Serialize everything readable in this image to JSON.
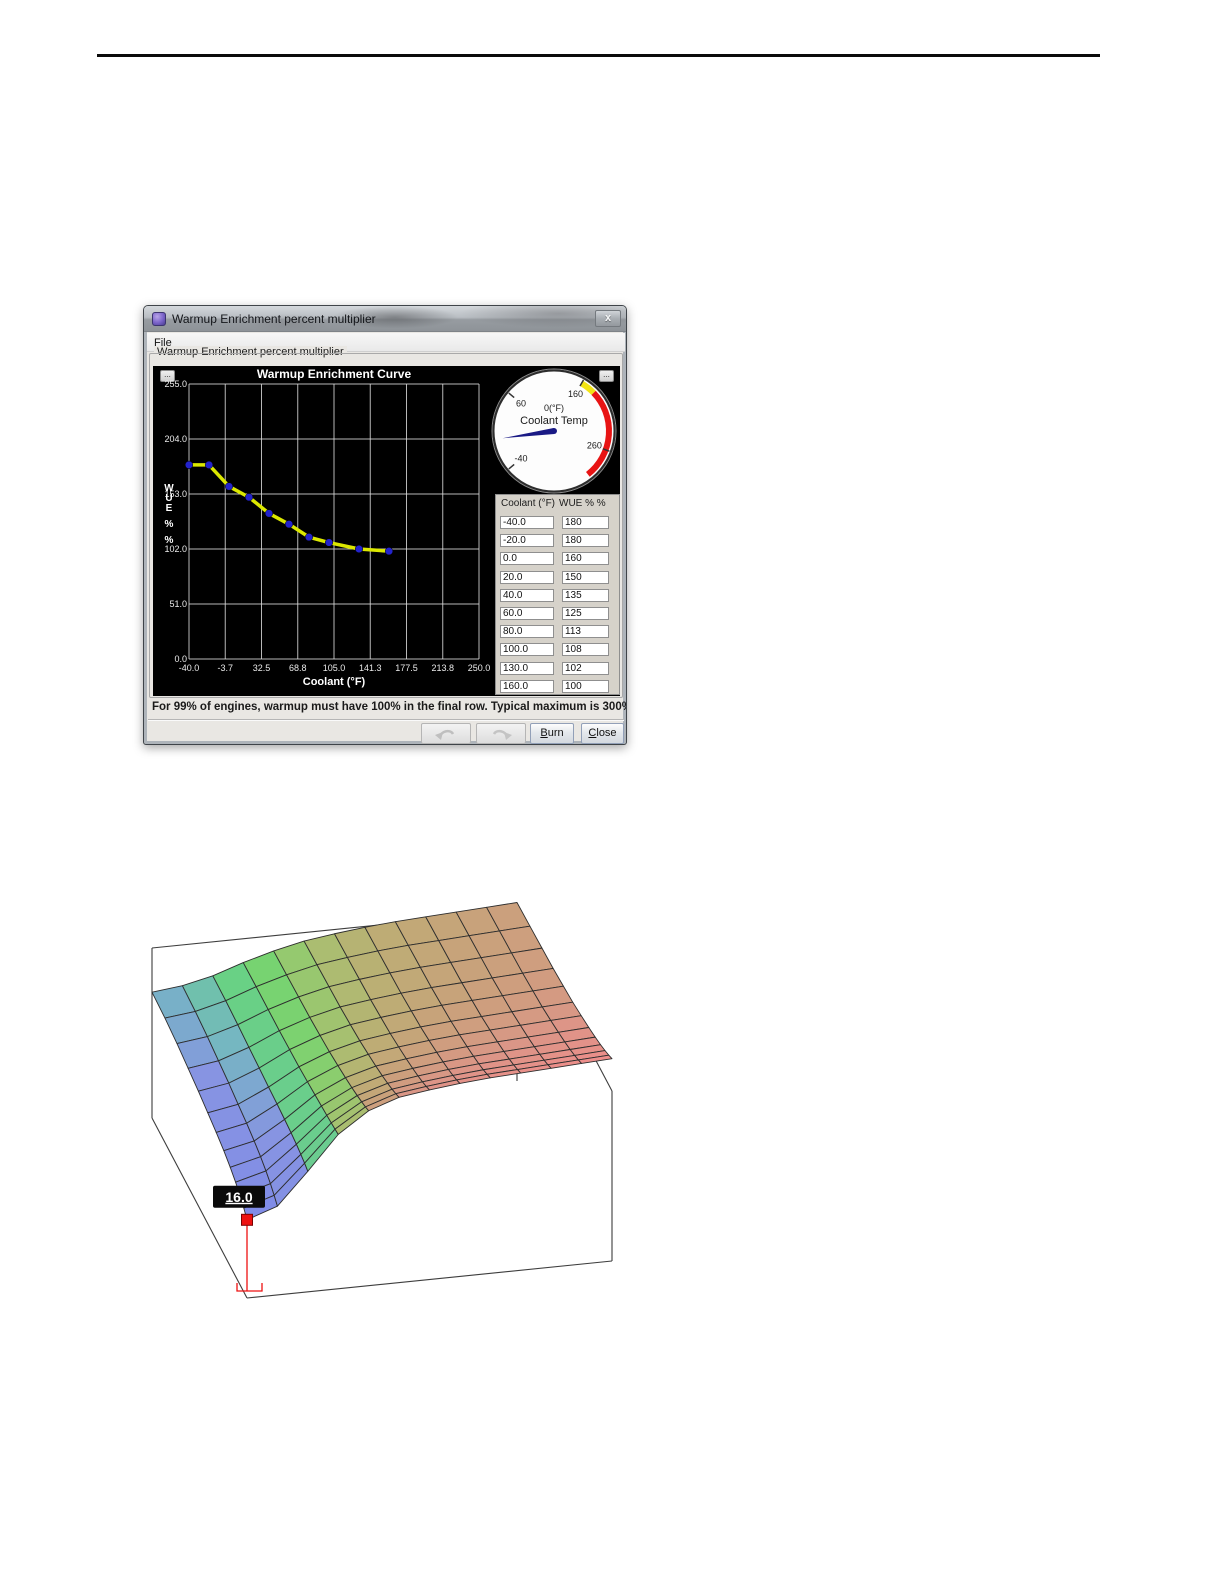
{
  "dialog": {
    "title": "Warmup Enrichment percent multiplier",
    "close_label": "x",
    "menu_items": {
      "file": "File"
    },
    "group_title": "Warmup Enrichment percent multiplier",
    "dots_button": "...",
    "status": "For 99% of engines, warmup must have 100% in the final row. Typical maximum is 300% (cold).",
    "buttons": {
      "burn": "Burn",
      "close": "Close"
    },
    "gauge": {
      "title": "Coolant Temp",
      "value_label": "0(°F)",
      "value": 0,
      "min": -40,
      "max": 300,
      "tick_labels": [
        {
          "v": -40,
          "t": "-40"
        },
        {
          "v": 60,
          "t": "60"
        },
        {
          "v": 160,
          "t": "160"
        },
        {
          "v": 260,
          "t": "260"
        }
      ],
      "red_arc": [
        180,
        300
      ],
      "yellow_arc": [
        160,
        180
      ],
      "red_color": "#e81414",
      "yellow_color": "#f2e413",
      "needle_color": "#1a1a85"
    },
    "table": {
      "headers": [
        "Coolant (°F)",
        "WUE % %"
      ],
      "rows": [
        [
          "-40.0",
          "180"
        ],
        [
          "-20.0",
          "180"
        ],
        [
          "0.0",
          "160"
        ],
        [
          "20.0",
          "150"
        ],
        [
          "40.0",
          "135"
        ],
        [
          "60.0",
          "125"
        ],
        [
          "80.0",
          "113"
        ],
        [
          "100.0",
          "108"
        ],
        [
          "130.0",
          "102"
        ],
        [
          "160.0",
          "100"
        ]
      ]
    }
  },
  "chart_data": [
    {
      "type": "line",
      "title": "Warmup Enrichment Curve",
      "xlabel": "Coolant (°F)",
      "ylabel": "WUE % %",
      "ylabel_stack": [
        "W",
        "U",
        "E",
        "%",
        "%"
      ],
      "x": [
        -40,
        -20,
        0,
        20,
        40,
        60,
        80,
        100,
        130,
        160
      ],
      "y": [
        180,
        180,
        160,
        150,
        135,
        125,
        113,
        108,
        102,
        100
      ],
      "xlim": [
        -40,
        250
      ],
      "ylim": [
        0,
        255
      ],
      "xticks": [
        -40,
        -3.75,
        32.5,
        68.75,
        105,
        141.25,
        177.5,
        213.75,
        250
      ],
      "xtick_labels": [
        "-40.0",
        "-3.7",
        "32.5",
        "68.8",
        "105.0",
        "141.3",
        "177.5",
        "213.8",
        "250.0"
      ],
      "yticks": [
        0,
        51,
        102,
        153,
        204,
        255
      ],
      "ytick_labels": [
        "0.0",
        "51.0",
        "102.0",
        "153.0",
        "204.0",
        "255.0"
      ],
      "grid": true,
      "bg_color": "#000000",
      "grid_color": "#d9d9d9",
      "line_color": "#dce800",
      "marker_color": "#2323cc"
    },
    {
      "type": "heatmap",
      "render_style": "3d-surface-mesh",
      "title": "",
      "marker": {
        "label": "16.0",
        "row": 12,
        "col": 0,
        "value": 16.0
      },
      "marker_color": "#ee1111",
      "z_grid": [
        [
          44.0,
          46.0,
          50.0,
          56.0,
          61.0,
          65.0,
          67.5,
          69.5,
          71.0,
          72.0,
          73.0,
          74.0,
          75.0
        ],
        [
          43.2,
          45.3,
          49.8,
          56.2,
          61.4,
          65.5,
          68.0,
          70.0,
          71.5,
          72.5,
          73.5,
          74.5,
          75.5
        ],
        [
          41.6,
          43.9,
          49.1,
          56.2,
          61.8,
          66.0,
          68.5,
          70.5,
          72.0,
          73.0,
          74.0,
          75.0,
          76.0
        ],
        [
          39.5,
          42.1,
          48.2,
          56.2,
          62.2,
          66.5,
          69.0,
          71.0,
          72.5,
          73.5,
          74.5,
          75.5,
          76.5
        ],
        [
          37.5,
          40.4,
          47.5,
          56.5,
          63.0,
          67.5,
          70.0,
          72.0,
          73.5,
          74.5,
          75.5,
          76.5,
          77.5
        ],
        [
          35.2,
          38.4,
          46.7,
          56.8,
          63.9,
          68.5,
          71.0,
          73.0,
          74.5,
          75.5,
          76.5,
          77.5,
          78.5
        ],
        [
          33.1,
          36.7,
          46.2,
          57.5,
          65.2,
          70.0,
          72.5,
          74.5,
          76.0,
          77.0,
          78.0,
          79.0,
          80.0
        ],
        [
          30.8,
          34.7,
          45.6,
          58.2,
          66.5,
          71.5,
          74.0,
          76.0,
          77.5,
          78.5,
          79.5,
          80.5,
          81.5
        ],
        [
          28.2,
          32.6,
          44.9,
          58.8,
          67.8,
          73.0,
          75.5,
          77.5,
          79.0,
          80.0,
          81.0,
          82.0,
          83.0
        ],
        [
          25.4,
          30.2,
          44.1,
          59.3,
          69.1,
          74.5,
          77.0,
          79.0,
          80.5,
          81.5,
          82.5,
          83.5,
          84.5
        ],
        [
          22.5,
          27.7,
          43.1,
          59.8,
          70.4,
          76.0,
          78.5,
          80.5,
          82.0,
          83.0,
          84.0,
          85.0,
          86.0
        ],
        [
          19.3,
          25.0,
          42.1,
          60.3,
          71.6,
          77.5,
          80.0,
          82.0,
          83.5,
          84.5,
          85.5,
          86.5,
          87.5
        ],
        [
          16.0,
          22.2,
          40.9,
          60.8,
          72.9,
          79.0,
          81.5,
          83.5,
          85.0,
          86.0,
          87.0,
          88.0,
          89.0
        ]
      ],
      "color_stops": [
        [
          16,
          "#7e8ae8"
        ],
        [
          40,
          "#8794e2"
        ],
        [
          46,
          "#74b8c0"
        ],
        [
          50,
          "#6cc996"
        ],
        [
          56,
          "#66d873"
        ],
        [
          62,
          "#8ccd6e"
        ],
        [
          66,
          "#a8bf70"
        ],
        [
          70,
          "#bcae74"
        ],
        [
          74,
          "#c9a17b"
        ],
        [
          80,
          "#dc9587"
        ],
        [
          90,
          "#f28c8c"
        ]
      ],
      "box_color": "#3d3d3d"
    }
  ]
}
